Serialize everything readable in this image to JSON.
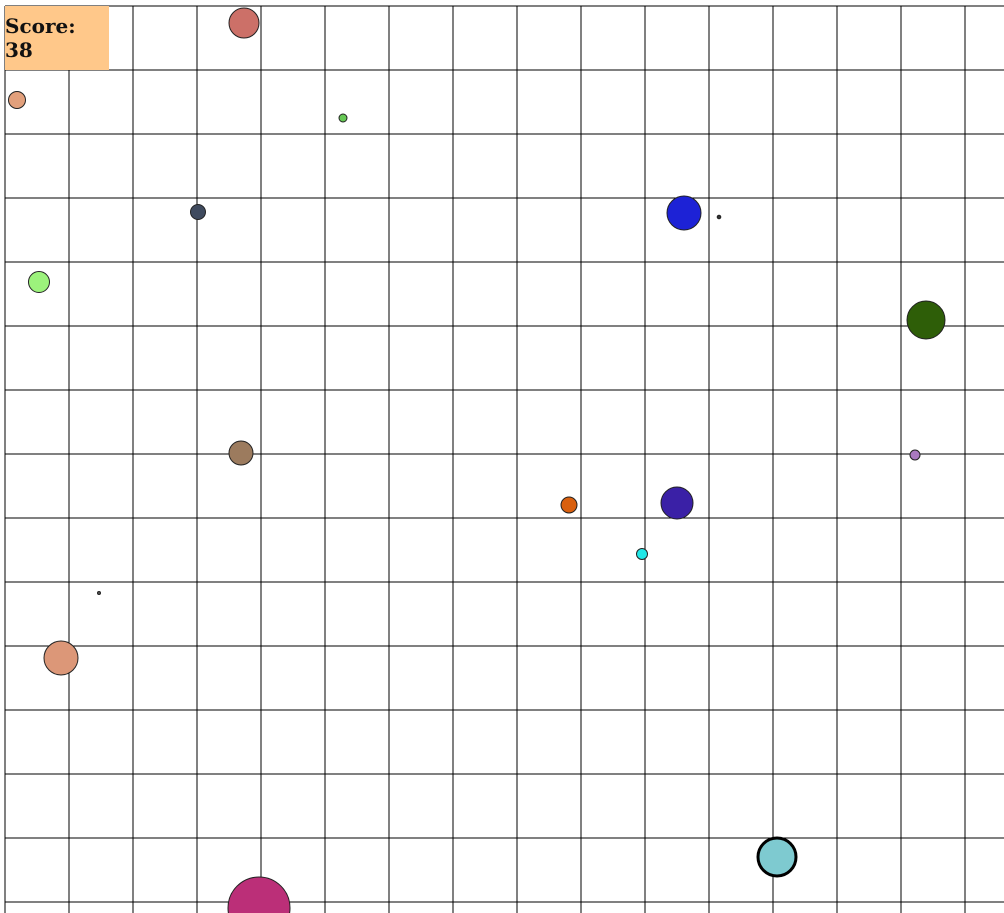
{
  "hud": {
    "score_label": "Score: 38"
  },
  "colors": {
    "background": "#ffffff",
    "grid_line": "#000000",
    "score_box": "#ffc88a",
    "cell_outline": "#222222"
  },
  "player": {
    "color": "#7ecad0"
  },
  "cells": [
    {
      "name": "food-cell",
      "color": "#cc7068"
    },
    {
      "name": "food-cell",
      "color": "#e2a07c"
    },
    {
      "name": "food-cell",
      "color": "#66c855"
    },
    {
      "name": "food-cell",
      "color": "#3f4a5e"
    },
    {
      "name": "enemy-cell",
      "color": "#1d22d6"
    },
    {
      "name": "food-cell",
      "color": "#333333"
    },
    {
      "name": "food-cell",
      "color": "#9cf27c"
    },
    {
      "name": "enemy-cell",
      "color": "#2e5e08"
    },
    {
      "name": "food-cell",
      "color": "#9c7b5e"
    },
    {
      "name": "food-cell",
      "color": "#a979c0"
    },
    {
      "name": "food-cell",
      "color": "#d9600f"
    },
    {
      "name": "enemy-cell",
      "color": "#3a20a6"
    },
    {
      "name": "food-cell",
      "color": "#22e8e8"
    },
    {
      "name": "food-cell",
      "color": "#555555"
    },
    {
      "name": "food-cell",
      "color": "#dc9778"
    },
    {
      "name": "enemy-cell",
      "color": "#bb2f78"
    }
  ]
}
